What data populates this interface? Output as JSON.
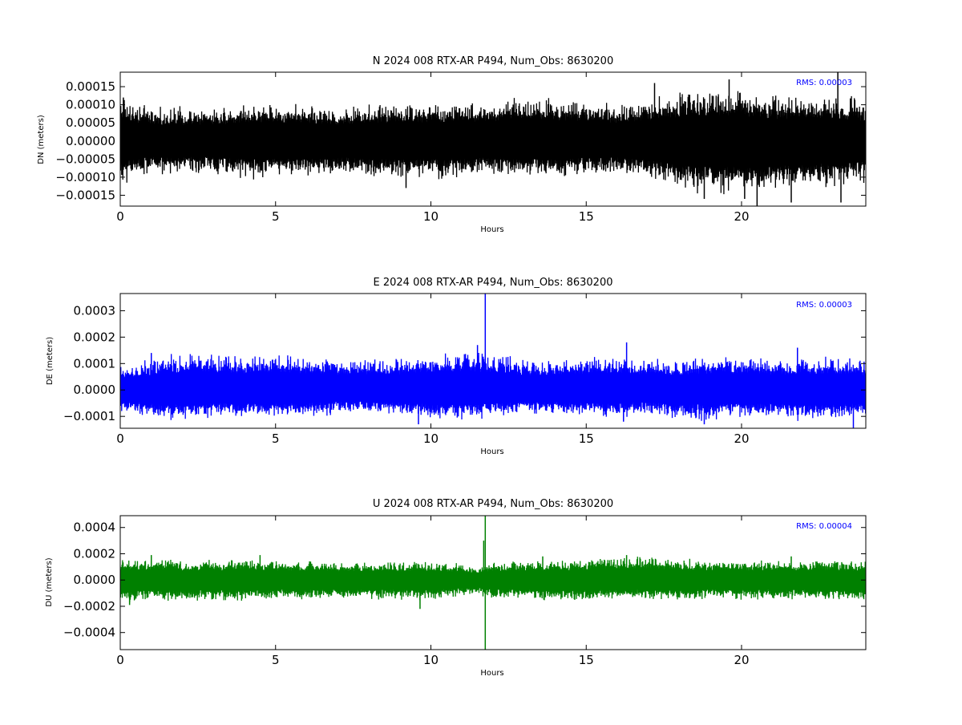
{
  "chart_data": [
    {
      "type": "line",
      "title": "N 2024 008 RTX-AR  P494, Num_Obs: 8630200",
      "xlabel": "Hours",
      "ylabel": "DN (meters)",
      "xlim": [
        0,
        24
      ],
      "ylim": [
        -0.00018,
        0.00019
      ],
      "x_ticks": [
        0,
        5,
        10,
        15,
        20
      ],
      "x_tick_labels": [
        "0",
        "5",
        "10",
        "15",
        "20"
      ],
      "y_ticks": [
        -0.00015,
        -0.0001,
        -5e-05,
        0,
        5e-05,
        0.0001,
        0.00015
      ],
      "y_tick_labels": [
        "−0.00015",
        "−0.00010",
        "−0.00005",
        "0.00000",
        "0.00005",
        "0.00010",
        "0.00015"
      ],
      "annotation": "RMS:  0.00003",
      "annotation_color": "#0000ff",
      "series_color": "#000000",
      "grid": false,
      "envelope": {
        "x": [
          0,
          0.1,
          0.5,
          1,
          2,
          3,
          4,
          5,
          6,
          7,
          8,
          9,
          10,
          11,
          12,
          13,
          14,
          15,
          16,
          17,
          18,
          19,
          20,
          21,
          22,
          23,
          24
        ],
        "upper": [
          0.00012,
          0.00011,
          9e-05,
          8e-05,
          8e-05,
          8e-05,
          9e-05,
          9e-05,
          9e-05,
          8e-05,
          9e-05,
          9e-05,
          9e-05,
          0.0001,
          9e-05,
          0.00011,
          0.0001,
          0.0001,
          9e-05,
          0.0001,
          0.00012,
          0.00013,
          0.00012,
          0.00011,
          0.00011,
          0.00011,
          0.0001
        ],
        "lower": [
          -0.0001,
          -0.0001,
          -9e-05,
          -8e-05,
          -8e-05,
          -8e-05,
          -9e-05,
          -9e-05,
          -9e-05,
          -8e-05,
          -9e-05,
          -9e-05,
          -9e-05,
          -9e-05,
          -8e-05,
          -9e-05,
          -9e-05,
          -8e-05,
          -8e-05,
          -9e-05,
          -0.00012,
          -0.00013,
          -0.00013,
          -0.00012,
          -0.00012,
          -0.00011,
          -0.0001
        ]
      },
      "spikes": [
        {
          "x": 0.1,
          "y": 0.00012
        },
        {
          "x": 9.2,
          "y": -0.00013
        },
        {
          "x": 17.2,
          "y": 0.00016
        },
        {
          "x": 18.8,
          "y": -0.00016
        },
        {
          "x": 19.6,
          "y": 0.00017
        },
        {
          "x": 20.1,
          "y": -0.00016
        },
        {
          "x": 20.5,
          "y": -0.00018
        },
        {
          "x": 21.6,
          "y": -0.00017
        },
        {
          "x": 23.1,
          "y": 0.00019
        },
        {
          "x": 23.2,
          "y": -0.00017
        }
      ]
    },
    {
      "type": "line",
      "title": "E 2024 008 RTX-AR  P494, Num_Obs: 8630200",
      "xlabel": "Hours",
      "ylabel": "DE (meters)",
      "xlim": [
        0,
        24
      ],
      "ylim": [
        -0.000145,
        0.000365
      ],
      "x_ticks": [
        0,
        5,
        10,
        15,
        20
      ],
      "x_tick_labels": [
        "0",
        "5",
        "10",
        "15",
        "20"
      ],
      "y_ticks": [
        -0.0001,
        0,
        0.0001,
        0.0002,
        0.0003
      ],
      "y_tick_labels": [
        "−0.0001",
        "0.0000",
        "0.0001",
        "0.0002",
        "0.0003"
      ],
      "annotation": "RMS:  0.00003",
      "annotation_color": "#0000ff",
      "series_color": "#0000ff",
      "grid": false,
      "envelope": {
        "x": [
          0,
          0.5,
          1,
          1.5,
          2,
          3,
          4,
          5,
          6,
          7,
          8,
          9,
          10,
          11,
          12,
          13,
          14,
          15,
          16,
          17,
          18,
          19,
          20,
          21,
          22,
          23,
          24
        ],
        "upper": [
          8e-05,
          9e-05,
          0.0001,
          0.00012,
          0.00012,
          0.00012,
          0.00011,
          0.00012,
          0.00011,
          0.0001,
          0.0001,
          0.0001,
          0.00012,
          0.00013,
          0.00012,
          0.0001,
          0.0001,
          0.00011,
          0.00011,
          0.0001,
          0.0001,
          0.00011,
          0.00011,
          0.0001,
          0.00011,
          0.00011,
          0.0001
        ],
        "lower": [
          -7e-05,
          -8e-05,
          -9e-05,
          -0.0001,
          -0.0001,
          -9e-05,
          -9e-05,
          -9e-05,
          -9e-05,
          -8e-05,
          -8e-05,
          -8e-05,
          -0.0001,
          -0.0001,
          -9e-05,
          -8e-05,
          -8e-05,
          -9e-05,
          -9e-05,
          -8e-05,
          -0.0001,
          -0.0001,
          -9e-05,
          -9e-05,
          -0.0001,
          -0.0001,
          -9e-05
        ]
      },
      "spikes": [
        {
          "x": 1.0,
          "y": 0.00014
        },
        {
          "x": 9.6,
          "y": -0.00013
        },
        {
          "x": 11.5,
          "y": 0.00017
        },
        {
          "x": 11.75,
          "y": 0.000365
        },
        {
          "x": 16.3,
          "y": 0.00018
        },
        {
          "x": 16.2,
          "y": -0.00012
        },
        {
          "x": 18.8,
          "y": -0.00013
        },
        {
          "x": 21.8,
          "y": 0.00016
        },
        {
          "x": 23.6,
          "y": -0.000145
        }
      ]
    },
    {
      "type": "line",
      "title": "U 2024 008 RTX-AR  P494, Num_Obs: 8630200",
      "xlabel": "Hours",
      "ylabel": "DU (meters)",
      "xlim": [
        0,
        24
      ],
      "ylim": [
        -0.00053,
        0.00049
      ],
      "x_ticks": [
        0,
        5,
        10,
        15,
        20
      ],
      "x_tick_labels": [
        "0",
        "5",
        "10",
        "15",
        "20"
      ],
      "y_ticks": [
        -0.0004,
        -0.0002,
        0,
        0.0002,
        0.0004
      ],
      "y_tick_labels": [
        "−0.0004",
        "−0.0002",
        "0.0000",
        "0.0002",
        "0.0004"
      ],
      "annotation": "RMS:  0.00004",
      "annotation_color": "#0000ff",
      "series_color": "#008000",
      "grid": false,
      "envelope": {
        "x": [
          0,
          1,
          2,
          3,
          4,
          5,
          6,
          7,
          8,
          9,
          10,
          11,
          11.5,
          12,
          13,
          14,
          15,
          16,
          17,
          18,
          19,
          20,
          21,
          22,
          23,
          24
        ],
        "upper": [
          0.00014,
          0.00014,
          0.00013,
          0.00013,
          0.00014,
          0.00013,
          0.00013,
          0.00012,
          0.00012,
          0.00012,
          0.00012,
          0.00011,
          9e-05,
          0.00012,
          0.00013,
          0.00013,
          0.00014,
          0.00015,
          0.00015,
          0.00014,
          0.00013,
          0.00013,
          0.00013,
          0.00013,
          0.00013,
          0.00013
        ],
        "lower": [
          -0.00015,
          -0.00014,
          -0.00014,
          -0.00014,
          -0.00014,
          -0.00013,
          -0.00013,
          -0.00013,
          -0.00013,
          -0.00013,
          -0.00013,
          -0.00011,
          -0.0001,
          -0.00013,
          -0.00013,
          -0.00014,
          -0.00014,
          -0.00013,
          -0.00013,
          -0.00014,
          -0.00013,
          -0.00013,
          -0.00013,
          -0.00013,
          -0.00014,
          -0.00014
        ]
      },
      "spikes": [
        {
          "x": 0.3,
          "y": -0.00019
        },
        {
          "x": 1.0,
          "y": 0.00019
        },
        {
          "x": 4.5,
          "y": 0.00019
        },
        {
          "x": 9.65,
          "y": -0.00022
        },
        {
          "x": 11.7,
          "y": 0.0003
        },
        {
          "x": 11.75,
          "y": 0.00049
        },
        {
          "x": 11.75,
          "y": -0.00053
        },
        {
          "x": 13.6,
          "y": 0.00018
        },
        {
          "x": 16.3,
          "y": 0.00019
        },
        {
          "x": 21.6,
          "y": 0.00018
        }
      ]
    }
  ]
}
